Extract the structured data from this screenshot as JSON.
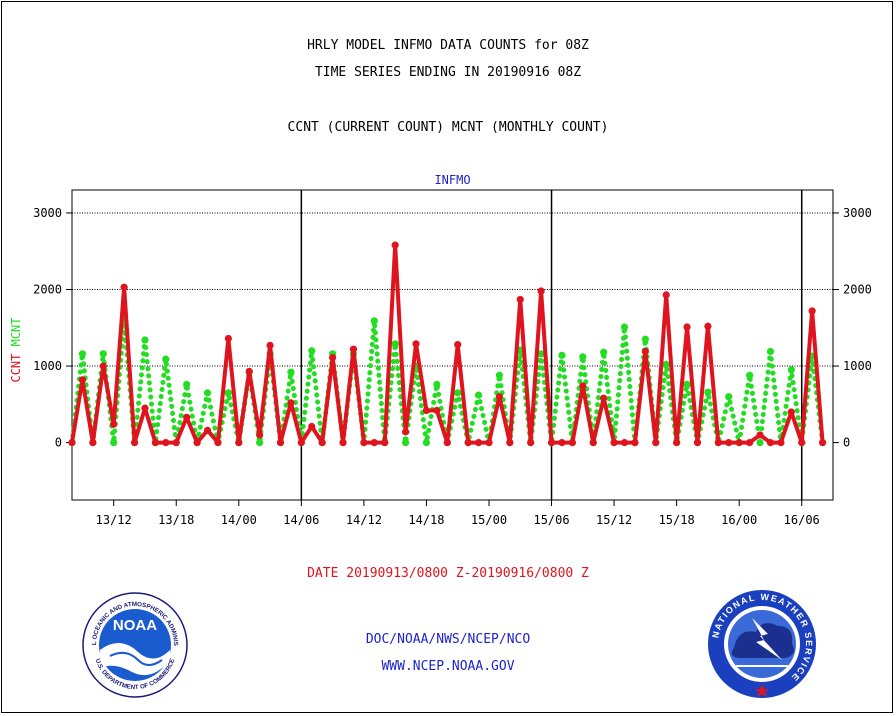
{
  "header": {
    "title_line1": "HRLY MODEL INFMO DATA COUNTS for 08Z",
    "title_line2": "TIME SERIES ENDING IN 20190916 08Z",
    "title_line3": "CCNT (CURRENT COUNT) MCNT (MONTHLY COUNT)"
  },
  "footer": {
    "date_range": "DATE 20190913/0800 Z-20190916/0800 Z",
    "org": "DOC/NOAA/NWS/NCEP/NCO",
    "url": "WWW.NCEP.NOAA.GOV"
  },
  "logos": {
    "noaa_label": "NOAA",
    "noaa_ring_top": "NATIONAL OCEANIC AND ATMOSPHERIC ADMINISTRATION",
    "noaa_ring_bottom": "U.S. DEPARTMENT OF COMMERCE",
    "nws_ring": "NATIONAL WEATHER SERVICE"
  },
  "chart_data": {
    "type": "line",
    "title": "INFMO",
    "ylabel_ccnt": "CCNT",
    "ylabel_mcnt": "MCNT",
    "ylim": [
      -750,
      3300
    ],
    "y_ticks": [
      0,
      1000,
      2000,
      3000
    ],
    "x_range": [
      0,
      73
    ],
    "x_tick_labels": [
      "13/12",
      "13/18",
      "14/00",
      "14/06",
      "14/12",
      "14/18",
      "15/00",
      "15/06",
      "15/12",
      "15/18",
      "16/00",
      "16/06"
    ],
    "x_tick_hours": [
      4,
      10,
      16,
      22,
      28,
      34,
      40,
      46,
      52,
      58,
      64,
      70
    ],
    "day_boundaries": [
      22,
      46,
      70
    ],
    "grid": "horizontal",
    "colors": {
      "ccnt": "#e0141e",
      "mcnt": "#22dd22",
      "title": "#1e22cc"
    },
    "series": [
      {
        "name": "CCNT",
        "style": "solid",
        "values": [
          0,
          820,
          0,
          1000,
          240,
          2030,
          0,
          450,
          0,
          0,
          0,
          330,
          0,
          160,
          0,
          1360,
          0,
          930,
          100,
          1270,
          0,
          520,
          0,
          210,
          0,
          1110,
          0,
          1220,
          0,
          0,
          0,
          2580,
          140,
          1290,
          420,
          420,
          0,
          1280,
          0,
          0,
          0,
          600,
          0,
          1870,
          0,
          1980,
          0,
          0,
          0,
          740,
          0,
          580,
          0,
          0,
          0,
          1190,
          0,
          1930,
          0,
          1510,
          0,
          1520,
          0,
          0,
          0,
          0,
          100,
          0,
          0,
          400,
          0,
          1720,
          0
        ]
      },
      {
        "name": "MCNT",
        "style": "dotted",
        "values": [
          0,
          1160,
          0,
          1160,
          0,
          1620,
          0,
          1340,
          0,
          1090,
          0,
          760,
          0,
          650,
          0,
          650,
          0,
          920,
          0,
          1160,
          0,
          920,
          0,
          1200,
          0,
          1160,
          0,
          1160,
          0,
          1590,
          0,
          1290,
          0,
          1000,
          0,
          760,
          0,
          650,
          0,
          620,
          0,
          880,
          0,
          1210,
          0,
          1160,
          0,
          1140,
          0,
          1120,
          0,
          1180,
          0,
          1510,
          0,
          1350,
          0,
          1020,
          0,
          760,
          0,
          660,
          0,
          600,
          0,
          880,
          0,
          1190,
          0,
          950,
          0,
          1130,
          0
        ]
      }
    ]
  }
}
